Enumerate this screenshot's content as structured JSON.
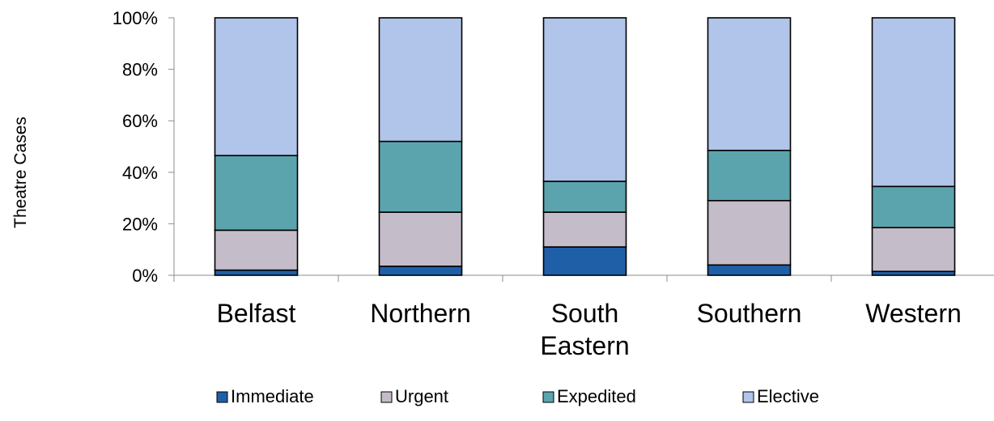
{
  "chart_data": {
    "type": "bar",
    "stacked": true,
    "percent_stacked": true,
    "categories": [
      "Belfast",
      "Northern",
      "South Eastern",
      "Southern",
      "Western"
    ],
    "category_label_lines": [
      [
        "Belfast"
      ],
      [
        "Northern"
      ],
      [
        "South",
        "Eastern"
      ],
      [
        "Southern"
      ],
      [
        "Western"
      ]
    ],
    "series": [
      {
        "name": "Immediate",
        "color": "#1f5fa8",
        "values": [
          2,
          3.5,
          11,
          4,
          1.5
        ]
      },
      {
        "name": "Urgent",
        "color": "#c4bcc9",
        "values": [
          15.5,
          21,
          13.5,
          25,
          17
        ]
      },
      {
        "name": "Expedited",
        "color": "#5ba4ad",
        "values": [
          29,
          27.5,
          12,
          19.5,
          16
        ]
      },
      {
        "name": "Elective",
        "color": "#b1c4ea",
        "values": [
          53.5,
          48,
          63.5,
          51.5,
          65.5
        ]
      }
    ],
    "ylabel": "Theatre  Cases",
    "ylim": [
      0,
      100
    ],
    "yticks": [
      0,
      20,
      40,
      60,
      80,
      100
    ],
    "ytick_labels": [
      "0%",
      "20%",
      "40%",
      "60%",
      "80%",
      "100%"
    ],
    "grid": false,
    "legend_position": "bottom"
  }
}
